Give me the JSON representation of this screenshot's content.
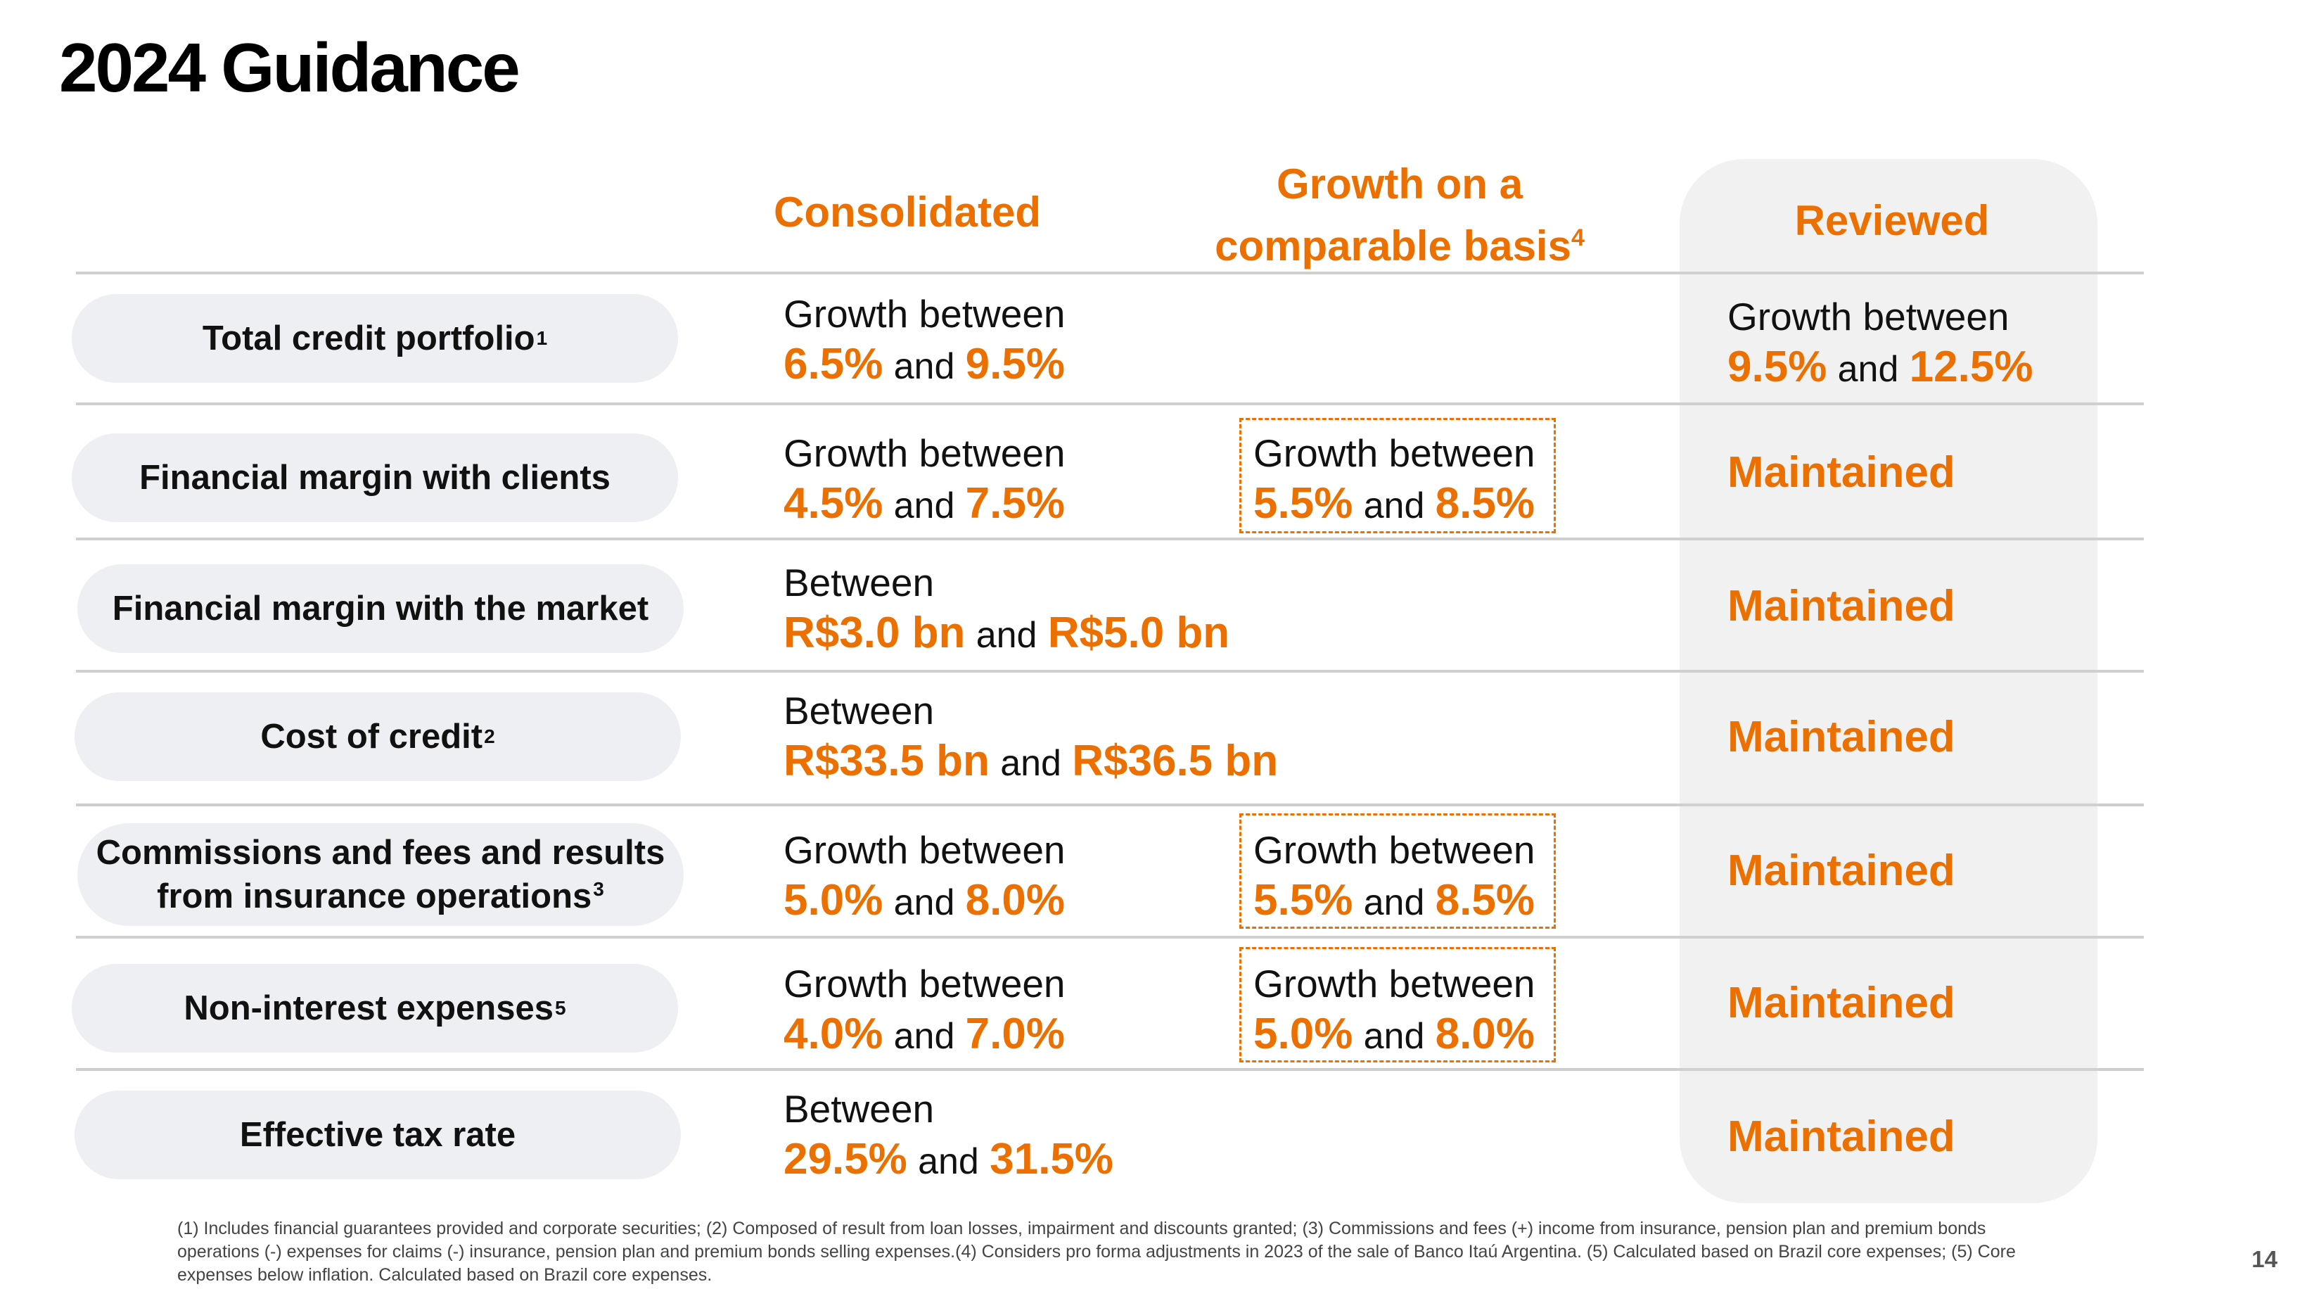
{
  "title": "2024 Guidance",
  "columns": {
    "consolidated": "Consolidated",
    "comparable_line1": "Growth on a",
    "comparable_line2": "comparable basis",
    "comparable_sup": "4",
    "reviewed": "Reviewed"
  },
  "connector": "and",
  "rows": [
    {
      "label": "Total credit portfolio",
      "label_sup": "1",
      "consolidated": {
        "prefix": "Growth between",
        "low": "6.5%",
        "high": "9.5%"
      },
      "reviewed": {
        "prefix": "Growth between",
        "low": "9.5%",
        "high": "12.5%"
      }
    },
    {
      "label": "Financial margin with clients",
      "consolidated": {
        "prefix": "Growth between",
        "low": "4.5%",
        "high": "7.5%"
      },
      "comparable": {
        "prefix": "Growth between",
        "low": "5.5%",
        "high": "8.5%"
      },
      "reviewed": "Maintained"
    },
    {
      "label": "Financial margin with the market",
      "consolidated": {
        "prefix": "Between",
        "low": "R$3.0 bn",
        "high": "R$5.0 bn"
      },
      "reviewed": "Maintained"
    },
    {
      "label": "Cost of credit",
      "label_sup": "2",
      "consolidated": {
        "prefix": "Between",
        "low": "R$33.5 bn",
        "high": "R$36.5 bn"
      },
      "reviewed": "Maintained"
    },
    {
      "label_line1": "Commissions and fees and results",
      "label_line2": "from insurance operations",
      "label_sup": "3",
      "consolidated": {
        "prefix": "Growth between",
        "low": "5.0%",
        "high": "8.0%"
      },
      "comparable": {
        "prefix": "Growth between",
        "low": "5.5%",
        "high": "8.5%"
      },
      "reviewed": "Maintained"
    },
    {
      "label": "Non-interest expenses",
      "label_sup": "5",
      "consolidated": {
        "prefix": "Growth between",
        "low": "4.0%",
        "high": "7.0%"
      },
      "comparable": {
        "prefix": "Growth between",
        "low": "5.0%",
        "high": "8.0%"
      },
      "reviewed": "Maintained"
    },
    {
      "label": "Effective tax rate",
      "consolidated": {
        "prefix": "Between",
        "low": "29.5%",
        "high": "31.5%"
      },
      "reviewed": "Maintained"
    }
  ],
  "footnote": "(1) Includes financial guarantees provided and corporate securities; (2) Composed of result from loan losses, impairment and discounts granted; (3) Commissions and fees (+) income from insurance, pension plan and premium bonds operations (-) expenses for claims (-) insurance, pension plan and premium bonds selling expenses.(4) Considers pro forma adjustments in 2023 of the sale of Banco Itaú Argentina. (5) Calculated based on Brazil core expenses; (5) Core expenses below inflation. Calculated based on Brazil core expenses.",
  "page_number": "14",
  "colors": {
    "accent": "#ec7000",
    "pill": "#eeeff2",
    "panel": "#f1f1f1",
    "rule": "#cfcfcf"
  }
}
